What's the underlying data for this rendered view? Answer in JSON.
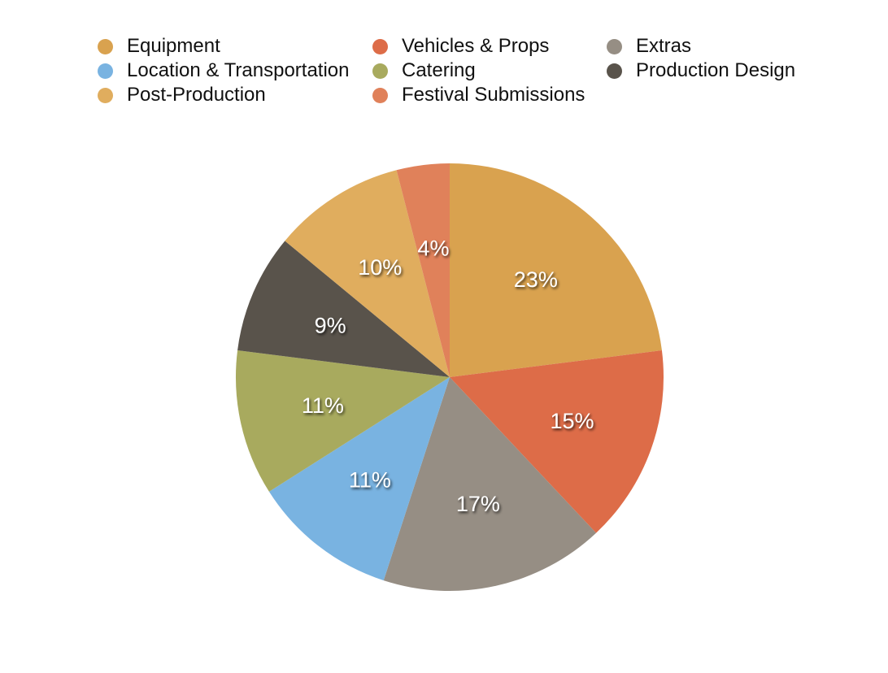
{
  "chart_data": {
    "type": "pie",
    "categories": [
      "Equipment",
      "Vehicles & Props",
      "Extras",
      "Location & Transportation",
      "Catering",
      "Production Design",
      "Post-Production",
      "Festival Submissions"
    ],
    "values": [
      23,
      15,
      17,
      11,
      11,
      9,
      10,
      4
    ],
    "labels": [
      "23%",
      "15%",
      "17%",
      "11%",
      "11%",
      "9%",
      "10%",
      "4%"
    ],
    "colors": [
      "#d9a24f",
      "#dd6c48",
      "#968e84",
      "#79b3e1",
      "#a8aa5e",
      "#59534b",
      "#e0ad5e",
      "#e0815a"
    ],
    "legend_position": "top",
    "start_angle": "12 o'clock, clockwise"
  },
  "legend": {
    "items": [
      {
        "label": "Equipment",
        "color": "#d9a24f"
      },
      {
        "label": "Location & Transportation",
        "color": "#79b3e1"
      },
      {
        "label": "Post-Production",
        "color": "#e0ad5e"
      },
      {
        "label": "Vehicles & Props",
        "color": "#dd6c48"
      },
      {
        "label": "Catering",
        "color": "#a8aa5e"
      },
      {
        "label": "Festival Submissions",
        "color": "#e0815a"
      },
      {
        "label": "Extras",
        "color": "#968e84"
      },
      {
        "label": "Production Design",
        "color": "#59534b"
      }
    ]
  }
}
